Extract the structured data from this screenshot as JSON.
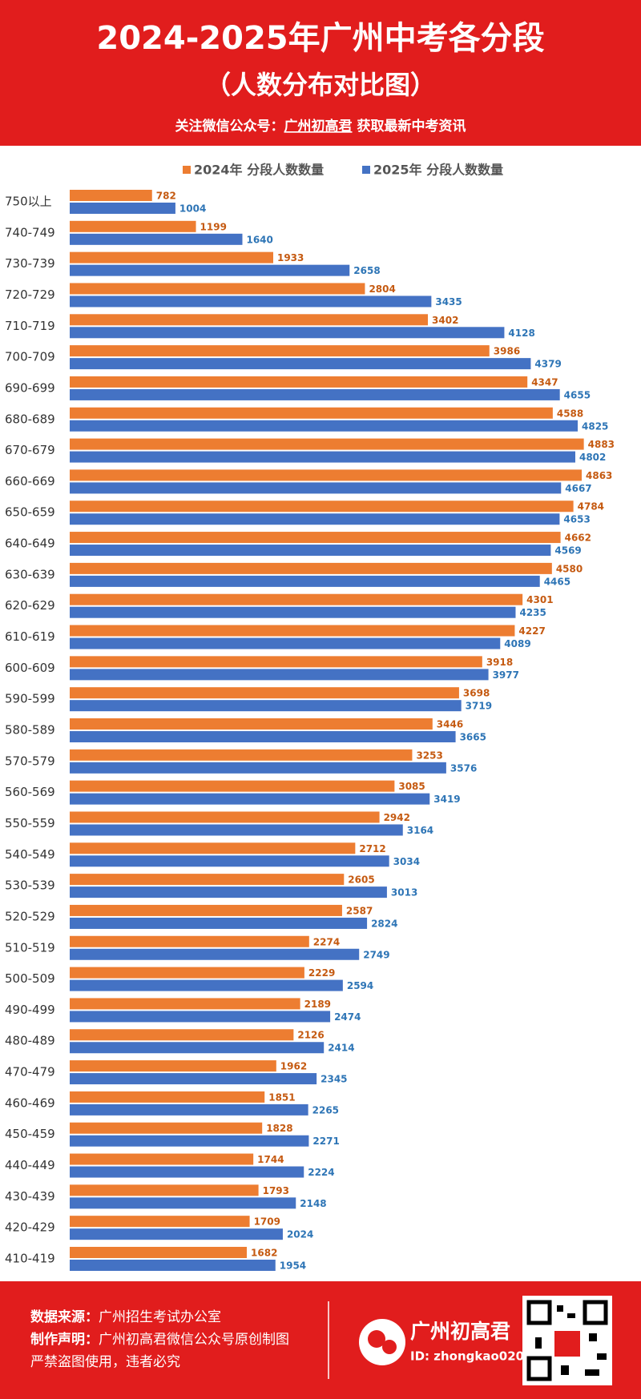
{
  "chart_data": {
    "type": "bar",
    "orientation": "horizontal",
    "title": "2024-2025年广州中考各分段",
    "subtitle": "（人数分布对比图）",
    "categories": [
      "750以上",
      "740-749",
      "730-739",
      "720-729",
      "710-719",
      "700-709",
      "690-699",
      "680-689",
      "670-679",
      "660-669",
      "650-659",
      "640-649",
      "630-639",
      "620-629",
      "610-619",
      "600-609",
      "590-599",
      "580-589",
      "570-579",
      "560-569",
      "550-559",
      "540-549",
      "530-539",
      "520-529",
      "510-519",
      "500-509",
      "490-499",
      "480-489",
      "470-479",
      "460-469",
      "450-459",
      "440-449",
      "430-439",
      "420-429",
      "410-419"
    ],
    "series": [
      {
        "name": "2024年 分段人数数量",
        "color": "#ed7d31",
        "label_color": "#c55a11",
        "values": [
          782,
          1199,
          1933,
          2804,
          3402,
          3986,
          4347,
          4588,
          4883,
          4863,
          4784,
          4662,
          4580,
          4301,
          4227,
          3918,
          3698,
          3446,
          3253,
          3085,
          2942,
          2712,
          2605,
          2587,
          2274,
          2229,
          2189,
          2126,
          1962,
          1851,
          1828,
          1744,
          1793,
          1709,
          1682
        ]
      },
      {
        "name": "2025年 分段人数数量",
        "color": "#4472c4",
        "label_color": "#2e75b6",
        "values": [
          1004,
          1640,
          2658,
          3435,
          4128,
          4379,
          4655,
          4825,
          4802,
          4667,
          4653,
          4569,
          4465,
          4235,
          4089,
          3977,
          3719,
          3665,
          3576,
          3419,
          3164,
          3034,
          3013,
          2824,
          2749,
          2594,
          2474,
          2414,
          2345,
          2265,
          2271,
          2224,
          2148,
          2024,
          1954
        ]
      }
    ],
    "xlim": [
      0,
      5350
    ],
    "legend": "top"
  },
  "header": {
    "follow_prefix": "关注微信公众号：",
    "account": "广州初高君",
    "follow_suffix": "获取最新中考资讯"
  },
  "footer": {
    "source_label": "数据来源：",
    "source": "广州招生考试办公室",
    "notice_label": "制作声明：",
    "notice": "广州初高君微信公众号原创制图",
    "warning": "严禁盗图使用，违者必究",
    "brand": "广州初高君",
    "brand_id": "ID: zhongkao020"
  }
}
